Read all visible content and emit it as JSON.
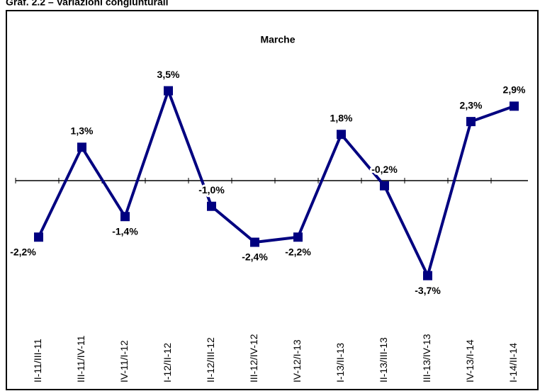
{
  "figure_caption": "Graf. 2.2 – Variazioni congiunturali",
  "chart_data": {
    "type": "line",
    "title": "Marche",
    "categories": [
      "II-11/III-11",
      "III-11/IV-11",
      "IV-11/I-12",
      "I-12/II-12",
      "II-12/III-12",
      "III-12/IV-12",
      "IV-12/I-13",
      "I-13/II-13",
      "II-13/III-13",
      "III-13/IV-13",
      "IV-13/I-14",
      "I-14/II-14"
    ],
    "values": [
      -2.2,
      1.3,
      -1.4,
      3.5,
      -1.0,
      -2.4,
      -2.2,
      1.8,
      -0.2,
      -3.7,
      2.3,
      2.9
    ],
    "value_labels": [
      "-2,2%",
      "1,3%",
      "-1,4%",
      "3,5%",
      "-1,0%",
      "-2,4%",
      "-2,2%",
      "1,8%",
      "-0,2%",
      "-3,7%",
      "2,3%",
      "2,9%"
    ],
    "color": "#000080",
    "ylim": [
      -4,
      4
    ]
  }
}
